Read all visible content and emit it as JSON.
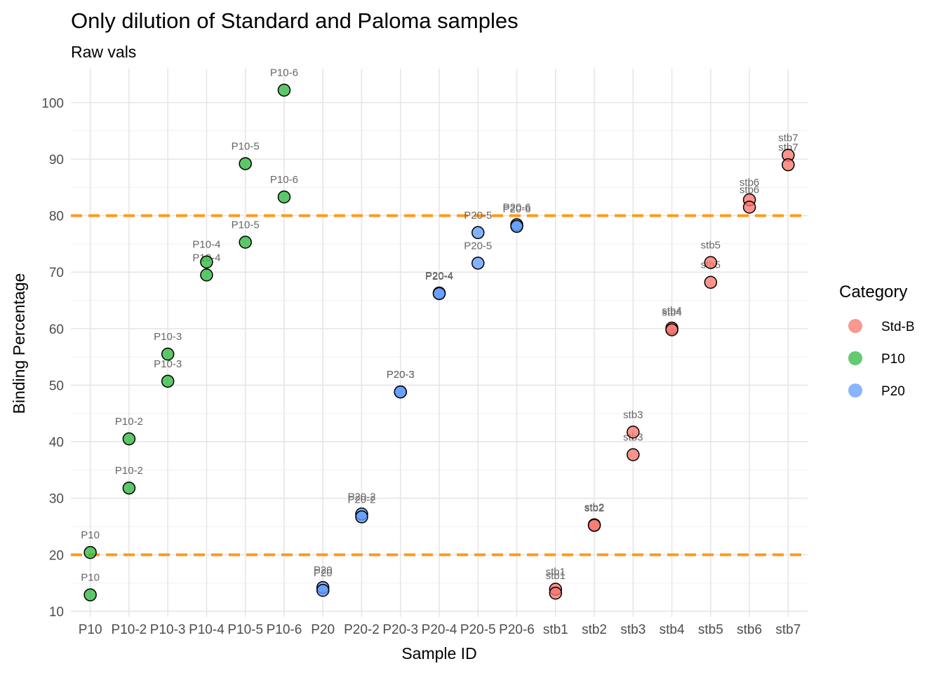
{
  "chart_data": {
    "type": "scatter",
    "title": "Only dilution of Standard and Paloma samples",
    "subtitle": "Raw vals",
    "xlabel": "Sample ID",
    "ylabel": "Binding Percentage",
    "categories": [
      "P10",
      "P10-2",
      "P10-3",
      "P10-4",
      "P10-5",
      "P10-6",
      "P20",
      "P20-2",
      "P20-3",
      "P20-4",
      "P20-5",
      "P20-6",
      "stb1",
      "stb2",
      "stb3",
      "stb4",
      "stb5",
      "stb6",
      "stb7"
    ],
    "y_ticks": [
      10,
      20,
      30,
      40,
      50,
      60,
      70,
      80,
      90,
      100
    ],
    "ylim": [
      9,
      106
    ],
    "reference_lines": [
      {
        "y": 20,
        "color": "#ff9a1a",
        "style": "dashed"
      },
      {
        "y": 80,
        "color": "#ff9a1a",
        "style": "dashed"
      }
    ],
    "grid": true,
    "legend": {
      "title": "Category",
      "position": "right",
      "entries": [
        {
          "label": "Std-B",
          "color": "#f8766d"
        },
        {
          "label": "P10",
          "color": "#2fb83f"
        },
        {
          "label": "P20",
          "color": "#619cff"
        }
      ]
    },
    "series": [
      {
        "name": "P10",
        "color": "#2fb83f",
        "points": [
          {
            "x": "P10",
            "y": 20.4,
            "label": "P10"
          },
          {
            "x": "P10",
            "y": 12.9,
            "label": "P10"
          },
          {
            "x": "P10-2",
            "y": 40.5,
            "label": "P10-2"
          },
          {
            "x": "P10-2",
            "y": 31.8,
            "label": "P10-2"
          },
          {
            "x": "P10-3",
            "y": 55.5,
            "label": "P10-3"
          },
          {
            "x": "P10-3",
            "y": 50.7,
            "label": "P10-3"
          },
          {
            "x": "P10-4",
            "y": 71.8,
            "label": "P10-4"
          },
          {
            "x": "P10-4",
            "y": 69.5,
            "label": "P10-4"
          },
          {
            "x": "P10-5",
            "y": 89.2,
            "label": "P10-5"
          },
          {
            "x": "P10-5",
            "y": 75.3,
            "label": "P10-5"
          },
          {
            "x": "P10-6",
            "y": 102.2,
            "label": "P10-6"
          },
          {
            "x": "P10-6",
            "y": 83.3,
            "label": "P10-6"
          }
        ]
      },
      {
        "name": "P20",
        "color": "#619cff",
        "points": [
          {
            "x": "P20",
            "y": 14.2,
            "label": "P20"
          },
          {
            "x": "P20",
            "y": 13.7,
            "label": "P20"
          },
          {
            "x": "P20-2",
            "y": 27.2,
            "label": "P20-2"
          },
          {
            "x": "P20-2",
            "y": 26.7,
            "label": "P20-2"
          },
          {
            "x": "P20-3",
            "y": 48.8,
            "label": "P20-3"
          },
          {
            "x": "P20-3",
            "y": 48.8,
            "label": "P20-3"
          },
          {
            "x": "P20-4",
            "y": 66.3,
            "label": "P20-4"
          },
          {
            "x": "P20-4",
            "y": 66.2,
            "label": "P20-4"
          },
          {
            "x": "P20-5",
            "y": 77.0,
            "label": "P20-5"
          },
          {
            "x": "P20-5",
            "y": 71.6,
            "label": "P20-5"
          },
          {
            "x": "P20-6",
            "y": 78.4,
            "label": "P20-6"
          },
          {
            "x": "P20-6",
            "y": 78.1,
            "label": "P20-6"
          }
        ]
      },
      {
        "name": "Std-B",
        "color": "#f8766d",
        "points": [
          {
            "x": "stb1",
            "y": 13.9,
            "label": "stb1"
          },
          {
            "x": "stb1",
            "y": 13.2,
            "label": "stb1"
          },
          {
            "x": "stb2",
            "y": 25.3,
            "label": "stb2"
          },
          {
            "x": "stb2",
            "y": 25.2,
            "label": "stb2"
          },
          {
            "x": "stb3",
            "y": 41.7,
            "label": "stb3"
          },
          {
            "x": "stb3",
            "y": 37.7,
            "label": "stb3"
          },
          {
            "x": "stb4",
            "y": 60.1,
            "label": "stb4"
          },
          {
            "x": "stb4",
            "y": 59.8,
            "label": "stb4"
          },
          {
            "x": "stb5",
            "y": 71.7,
            "label": "stb5"
          },
          {
            "x": "stb5",
            "y": 68.2,
            "label": "stb5"
          },
          {
            "x": "stb6",
            "y": 82.8,
            "label": "stb6"
          },
          {
            "x": "stb6",
            "y": 81.5,
            "label": "stb6"
          },
          {
            "x": "stb7",
            "y": 90.7,
            "label": "stb7"
          },
          {
            "x": "stb7",
            "y": 89.0,
            "label": "stb7"
          }
        ]
      }
    ]
  }
}
